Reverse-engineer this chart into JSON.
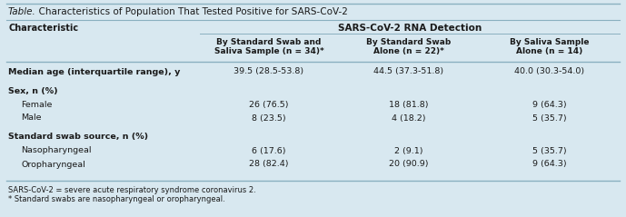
{
  "title_italic": "Table.",
  "title_normal": "  Characteristics of Population That Tested Positive for SARS-CoV-2",
  "col_header_main": "SARS-CoV-2 RNA Detection",
  "col_headers": [
    "By Standard Swab and\nSaliva Sample (n = 34)*",
    "By Standard Swab\nAlone (n = 22)*",
    "By Saliva Sample\nAlone (n = 14)"
  ],
  "row_label_col": "Characteristic",
  "rows": [
    {
      "label": "Median age (interquartile range), y",
      "bold": true,
      "indent": 0,
      "values": [
        "39.5 (28.5-53.8)",
        "44.5 (37.3-51.8)",
        "40.0 (30.3-54.0)"
      ],
      "spacer_after": true
    },
    {
      "label": "Sex, n (%)",
      "bold": true,
      "indent": 0,
      "values": [
        "",
        "",
        ""
      ],
      "spacer_after": false
    },
    {
      "label": "Female",
      "bold": false,
      "indent": 1,
      "values": [
        "26 (76.5)",
        "18 (81.8)",
        "9 (64.3)"
      ],
      "spacer_after": false
    },
    {
      "label": "Male",
      "bold": false,
      "indent": 1,
      "values": [
        "8 (23.5)",
        "4 (18.2)",
        "5 (35.7)"
      ],
      "spacer_after": true
    },
    {
      "label": "Standard swab source, n (%)",
      "bold": true,
      "indent": 0,
      "values": [
        "",
        "",
        ""
      ],
      "spacer_after": false
    },
    {
      "label": "Nasopharyngeal",
      "bold": false,
      "indent": 1,
      "values": [
        "6 (17.6)",
        "2 (9.1)",
        "5 (35.7)"
      ],
      "spacer_after": false
    },
    {
      "label": "Oropharyngeal",
      "bold": false,
      "indent": 1,
      "values": [
        "28 (82.4)",
        "20 (90.9)",
        "9 (64.3)"
      ],
      "spacer_after": false
    }
  ],
  "footnotes": [
    "SARS-CoV-2 = severe acute respiratory syndrome coronavirus 2.",
    "* Standard swabs are nasopharyngeal or oropharyngeal."
  ],
  "bg_color": "#d8e8f0",
  "line_color": "#8ab0c0",
  "text_color": "#1a1a1a",
  "figsize": [
    6.89,
    2.39
  ],
  "dpi": 100
}
